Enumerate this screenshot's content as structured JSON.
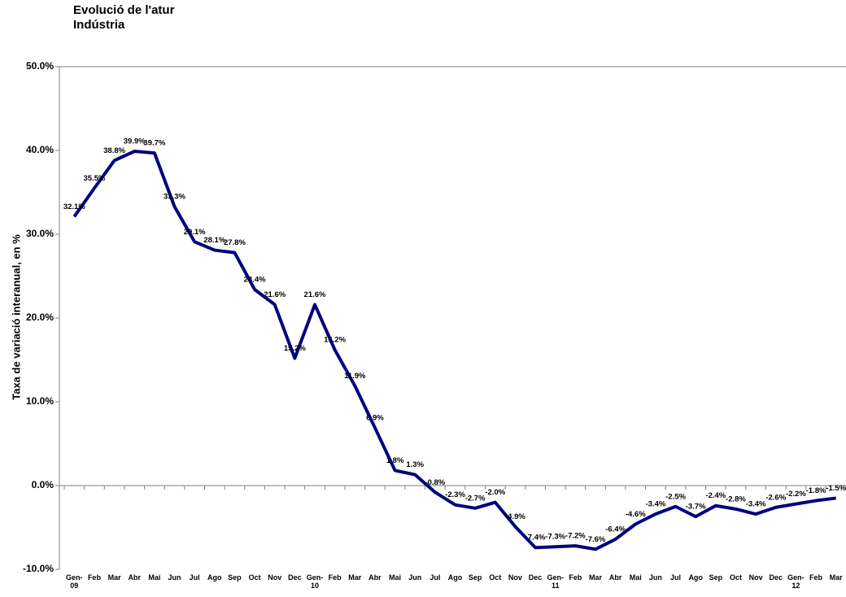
{
  "chart_data": {
    "type": "line",
    "title": "Evolució de l'atur",
    "subtitle": "Indústria",
    "y_label": "Taxa de variació interanual, en %",
    "categories": [
      "Gen-\n09",
      "Feb",
      "Mar",
      "Abr",
      "Mai",
      "Jun",
      "Jul",
      "Ago",
      "Sep",
      "Oct",
      "Nov",
      "Dec",
      "Gen-\n10",
      "Feb",
      "Mar",
      "Abr",
      "Mai",
      "Jun",
      "Jul",
      "Ago",
      "Sep",
      "Oct",
      "Nov",
      "Dec",
      "Gen-\n11",
      "Feb",
      "Mar",
      "Abr",
      "Mai",
      "Jun",
      "Jul",
      "Ago",
      "Sep",
      "Oct",
      "Nov",
      "Dec",
      "Gen-\n12",
      "Feb",
      "Mar"
    ],
    "series": [
      {
        "name": "Indústria",
        "color": "#000080",
        "values": [
          32.1,
          35.5,
          38.8,
          39.9,
          39.7,
          33.3,
          29.1,
          28.1,
          27.8,
          23.4,
          21.6,
          15.2,
          21.6,
          16.2,
          11.9,
          6.9,
          1.8,
          1.3,
          -0.8,
          -2.3,
          -2.7,
          -2.0,
          -4.9,
          -7.4,
          -7.3,
          -7.2,
          -7.6,
          -6.4,
          -4.6,
          -3.4,
          -2.5,
          -3.7,
          -2.4,
          -2.8,
          -3.4,
          -2.6,
          -2.2,
          -1.8,
          -1.5
        ],
        "value_labels": [
          "32.1%",
          "35.5%",
          "38.8%",
          "39.9%",
          "39.7%",
          "33.3%",
          "29.1%",
          "28.1%",
          "27.8%",
          "23.4%",
          "21.6%",
          "15.2%",
          "21.6%",
          "16.2%",
          "11.9%",
          "6.9%",
          "1.8%",
          "1.3%",
          "-0.8%",
          "-2.3%",
          "-2.7%",
          "-2.0%",
          "-4.9%",
          "-7.4%",
          "-7.3%",
          "-7.2%",
          "-7.6%",
          "-6.4%",
          "-4.6%",
          "-3.4%",
          "-2.5%",
          "-3.7%",
          "-2.4%",
          "-2.8%",
          "-3.4%",
          "-2.6%",
          "-2.2%",
          "-1.8%",
          "-1.5%"
        ]
      }
    ],
    "ylim": [
      -10,
      50
    ],
    "yticks": [
      {
        "value": -10,
        "label": "-10.0%"
      },
      {
        "value": 0,
        "label": "0.0%"
      },
      {
        "value": 10,
        "label": "10.0%"
      },
      {
        "value": 20,
        "label": "20.0%"
      },
      {
        "value": 30,
        "label": "30.0%"
      },
      {
        "value": 40,
        "label": "40.0%"
      },
      {
        "value": 50,
        "label": "50.0%"
      }
    ],
    "grid": false
  }
}
